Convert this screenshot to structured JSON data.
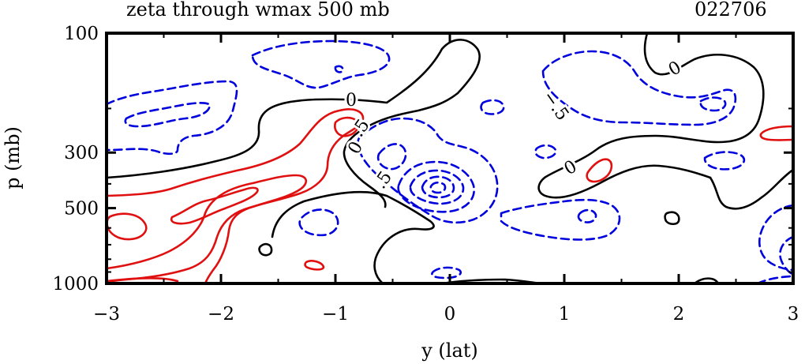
{
  "chart_data": {
    "type": "contour",
    "title": "zeta through wmax 500 mb",
    "run_id": "022706",
    "xlabel": "y (lat)",
    "ylabel": "p (mb)",
    "xlim": [
      -3,
      3
    ],
    "ylim": [
      100,
      1000
    ],
    "x_ticks": [
      -3,
      -2,
      -1,
      0,
      1,
      2,
      3
    ],
    "x_tick_labels": [
      "−3",
      "−2",
      "−1",
      "0",
      "1",
      "2",
      "3"
    ],
    "y_ticks": [
      100,
      300,
      500,
      1000
    ],
    "y_tick_labels": [
      "100",
      "300",
      "500",
      "1000"
    ],
    "contour_labels": [
      "0",
      "0",
      "0",
      "0",
      "−.5",
      ".5",
      ".5",
      "−.5"
    ],
    "colors": {
      "positive": "#e01010",
      "zero": "#000000",
      "negative": "#0000dd"
    }
  }
}
